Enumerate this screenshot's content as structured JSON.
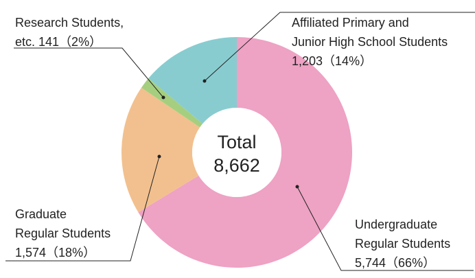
{
  "chart_data": {
    "type": "donut",
    "categories": [
      [
        "Undergraduate",
        "Regular Students"
      ],
      [
        "Graduate",
        "Regular Students"
      ],
      [
        "Research Students,",
        "etc."
      ],
      [
        "Affiliated Primary and",
        "Junior High School Students"
      ]
    ],
    "values": [
      5744,
      1574,
      141,
      1203
    ],
    "value_labels": [
      "5,744",
      "1,574",
      "141",
      "1,203"
    ],
    "percent_labels": [
      "（66%）",
      "（18%）",
      "（2%）",
      "（14%）"
    ],
    "colors": [
      "#eea2c4",
      "#f2c08e",
      "#a5cf7f",
      "#88ccd0"
    ],
    "center_title": "Total",
    "center_value": "8,662"
  }
}
